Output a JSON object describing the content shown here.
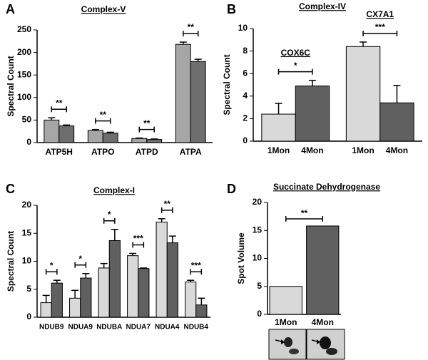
{
  "chart_data": [
    {
      "panel": "A",
      "type": "bar",
      "title": "Complex-V",
      "y_label": "Spectral Count",
      "categories": [
        "ATP5H",
        "ATPO",
        "ATPD",
        "ATPA"
      ],
      "series": [
        {
          "color": "#a6a6a6",
          "values": [
            50,
            27,
            9,
            218
          ],
          "errors": [
            5,
            2,
            1,
            5
          ]
        },
        {
          "color": "#6e6e6e",
          "values": [
            37,
            21,
            7,
            180
          ],
          "errors": [
            2,
            2,
            1,
            5
          ]
        }
      ],
      "annotations": [
        "**",
        "**",
        "**",
        "**"
      ],
      "ylim": [
        0,
        250
      ],
      "yticks": [
        0,
        50,
        100,
        150,
        200,
        250
      ]
    },
    {
      "panel": "B",
      "type": "bar",
      "title": "Complex-IV",
      "y_label": "Spectral Count",
      "categories": [
        "COX6C",
        "CX7A1"
      ],
      "series": [
        {
          "name": "1Mon",
          "color": "#d9d9d9",
          "values": [
            2.4,
            8.4
          ],
          "errors": [
            0.95,
            0.4
          ]
        },
        {
          "name": "4Mon",
          "color": "#606060",
          "values": [
            4.9,
            3.4
          ],
          "errors": [
            0.5,
            1.55
          ]
        }
      ],
      "annotations": [
        "*",
        "***"
      ],
      "ylim": [
        0,
        10
      ],
      "yticks": [
        0,
        2,
        4,
        6,
        8,
        10
      ]
    },
    {
      "panel": "C",
      "type": "bar",
      "title": "Complex-I",
      "y_label": "Spectral Count",
      "categories": [
        "NDUB9",
        "NDUA9",
        "NDUBA",
        "NDUA7",
        "NDUA4",
        "NDUB4"
      ],
      "series": [
        {
          "color": "#d9d9d9",
          "values": [
            2.6,
            3.4,
            8.8,
            11,
            17,
            6.3
          ],
          "errors": [
            1.3,
            1.4,
            0.8,
            0.4,
            0.6,
            0.3
          ]
        },
        {
          "color": "#606060",
          "values": [
            6.1,
            7,
            13.7,
            8.7,
            13.3,
            2.2
          ],
          "errors": [
            0.5,
            0.8,
            2,
            0.1,
            1.2,
            1.2
          ]
        }
      ],
      "annotations": [
        "*",
        "*",
        "*",
        "***",
        "**",
        "***"
      ],
      "ylim": [
        0,
        20
      ],
      "yticks": [
        0,
        5,
        10,
        15,
        20
      ]
    },
    {
      "panel": "D",
      "type": "bar",
      "title": "Succinate Dehydrogenase",
      "y_label": "Spot Volume",
      "categories": [
        "1Mon",
        "4Mon"
      ],
      "values": [
        5,
        15.8
      ],
      "colors": [
        "#d9d9d9",
        "#606060"
      ],
      "annotations": [
        "**"
      ],
      "ylim": [
        0,
        20
      ],
      "yticks": [
        0,
        5,
        10,
        15,
        20
      ]
    }
  ]
}
